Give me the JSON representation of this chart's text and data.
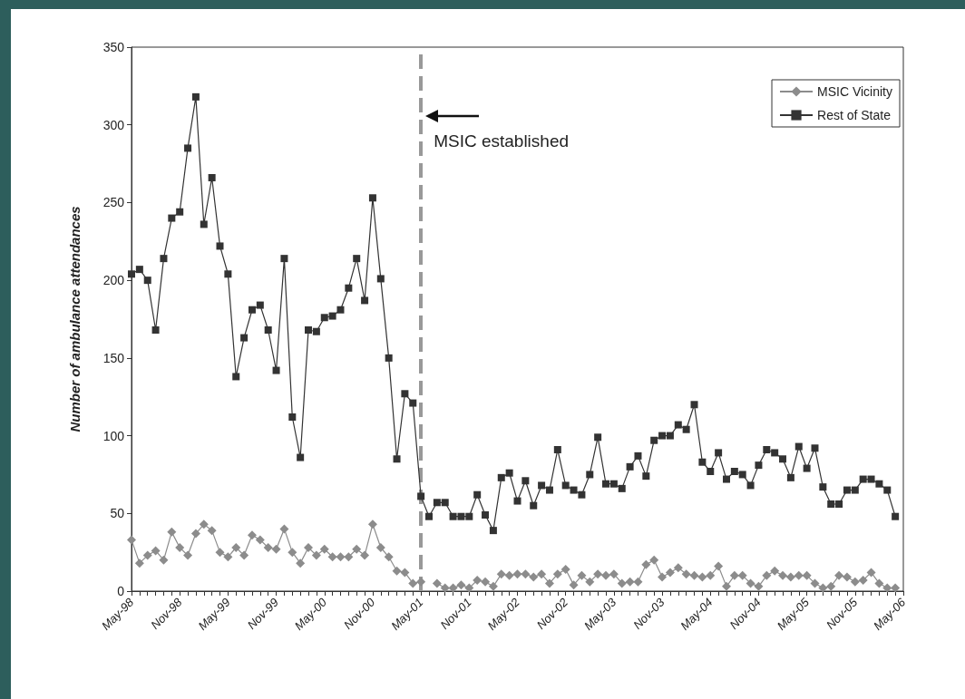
{
  "chart_data": {
    "type": "line",
    "ylabel": "Number of ambulance attendances",
    "categories": [
      "May-98",
      null,
      null,
      null,
      null,
      null,
      "Nov-98",
      null,
      null,
      null,
      null,
      null,
      "May-99",
      null,
      null,
      null,
      null,
      null,
      "Nov-99",
      null,
      null,
      null,
      null,
      null,
      "May-00",
      null,
      null,
      null,
      null,
      null,
      "Nov-00",
      null,
      null,
      null,
      null,
      null,
      "May-01",
      null,
      null,
      null,
      null,
      null,
      "Nov-01",
      null,
      null,
      null,
      null,
      null,
      "May-02",
      null,
      null,
      null,
      null,
      null,
      "Nov-02",
      null,
      null,
      null,
      null,
      null,
      "May-03",
      null,
      null,
      null,
      null,
      null,
      "Nov-03",
      null,
      null,
      null,
      null,
      null,
      "May-04",
      null,
      null,
      null,
      null,
      null,
      "Nov-04",
      null,
      null,
      null,
      null,
      null,
      "May-05",
      null,
      null,
      null,
      null,
      null,
      "Nov-05",
      null,
      null,
      null,
      null,
      null,
      "May-06"
    ],
    "series": [
      {
        "name": "MSIC Vicinity",
        "color": "#8c8c8c",
        "marker": "diamond",
        "values": [
          33,
          18,
          23,
          26,
          20,
          38,
          28,
          23,
          37,
          43,
          39,
          25,
          22,
          28,
          23,
          36,
          33,
          28,
          27,
          40,
          25,
          18,
          28,
          23,
          27,
          22,
          22,
          22,
          27,
          23,
          43,
          28,
          22,
          13,
          12,
          5,
          6,
          null,
          5,
          2,
          2,
          4,
          2,
          7,
          6,
          3,
          11,
          10,
          11,
          11,
          9,
          11,
          5,
          11,
          14,
          4,
          10,
          6,
          11,
          10,
          11,
          5,
          6,
          6,
          17,
          20,
          9,
          12,
          15,
          11,
          10,
          9,
          10,
          16,
          3,
          10,
          10,
          5,
          3,
          10,
          13,
          10,
          9,
          10,
          10,
          5,
          2,
          3,
          10,
          9,
          6,
          7,
          12,
          5,
          2,
          2,
          null
        ]
      },
      {
        "name": "Rest of State",
        "color": "#333333",
        "marker": "square",
        "values": [
          204,
          207,
          200,
          168,
          214,
          240,
          244,
          285,
          318,
          236,
          266,
          222,
          204,
          138,
          163,
          181,
          184,
          168,
          142,
          214,
          112,
          86,
          168,
          167,
          176,
          177,
          181,
          195,
          214,
          187,
          253,
          201,
          150,
          85,
          127,
          121,
          61,
          48,
          57,
          57,
          48,
          48,
          48,
          62,
          49,
          39,
          73,
          76,
          58,
          71,
          55,
          68,
          65,
          91,
          68,
          65,
          62,
          75,
          99,
          69,
          69,
          66,
          80,
          87,
          74,
          97,
          100,
          100,
          107,
          104,
          120,
          83,
          77,
          89,
          72,
          77,
          75,
          68,
          81,
          91,
          89,
          85,
          73,
          93,
          79,
          92,
          67,
          56,
          56,
          65,
          65,
          72,
          72,
          69,
          65,
          48,
          null
        ]
      }
    ],
    "ylim": [
      0,
      350
    ],
    "yticks": [
      0,
      50,
      100,
      150,
      200,
      250,
      300,
      350
    ],
    "grid": false,
    "legend": "top right",
    "line_style": "solid",
    "ref_lines": [
      {
        "axis": "x",
        "value": "May-01",
        "label": "MSIC established",
        "color": "#999999",
        "line_style": "dashed"
      }
    ]
  }
}
